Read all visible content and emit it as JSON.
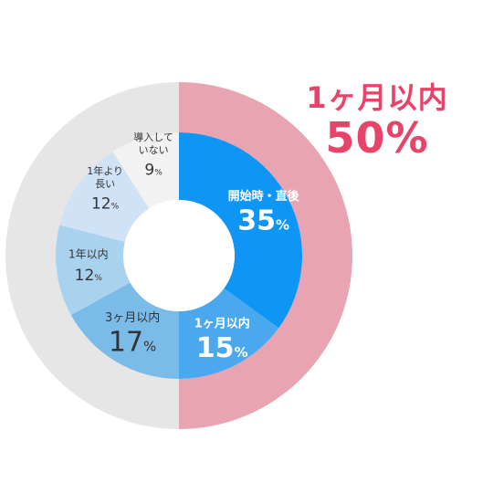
{
  "callout": {
    "label": "1ヶ月以内",
    "value": "50%"
  },
  "chart_data": {
    "type": "pie",
    "variant": "nested-donut",
    "outer_ring": {
      "slices": [
        {
          "label": "1ヶ月以内",
          "value": 50,
          "color": "#e8a4b0"
        },
        {
          "label": "",
          "value": 50,
          "color": "#e6e6e6"
        }
      ]
    },
    "inner_ring": {
      "slices": [
        {
          "label_lines": [
            "開始時・直後"
          ],
          "value": 35,
          "display": "35",
          "color": "#0f96f5",
          "text_color": "#ffffff"
        },
        {
          "label_lines": [
            "1ヶ月以内"
          ],
          "value": 15,
          "display": "15",
          "color": "#4aa8ef",
          "text_color": "#ffffff"
        },
        {
          "label_lines": [
            "3ヶ月以内"
          ],
          "value": 17,
          "display": "17",
          "color": "#7bbbe8",
          "text_color": "#333333"
        },
        {
          "label_lines": [
            "1年以内"
          ],
          "value": 12,
          "display": "12",
          "color": "#a9d2ef",
          "text_color": "#333333"
        },
        {
          "label_lines": [
            "1年より",
            "長い"
          ],
          "value": 12,
          "display": "12",
          "color": "#cfe2f6",
          "text_color": "#333333"
        },
        {
          "label_lines": [
            "導入して",
            "いない"
          ],
          "value": 9,
          "display": "9",
          "color": "#f2f2f2",
          "text_color": "#333333"
        }
      ],
      "unit": "%"
    }
  }
}
